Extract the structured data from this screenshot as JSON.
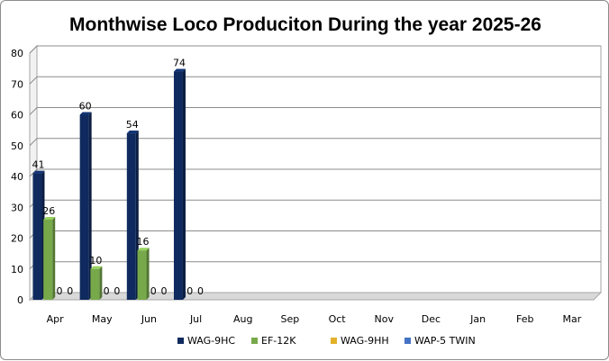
{
  "chart_data": {
    "type": "bar",
    "title": "Monthwise Loco Produciton During the year 2025-26",
    "xlabel": "",
    "ylabel": "",
    "categories": [
      "Apr",
      "May",
      "Jun",
      "Jul",
      "Aug",
      "Sep",
      "Oct",
      "Nov",
      "Dec",
      "Jan",
      "Feb",
      "Mar"
    ],
    "series": [
      {
        "name": "WAG-9HC",
        "color": "#0f2a5e",
        "values": [
          41,
          60,
          54,
          74,
          null,
          null,
          null,
          null,
          null,
          null,
          null,
          null
        ],
        "labels": [
          "41",
          "60",
          "54",
          "74",
          "",
          "",
          "",
          "",
          "",
          "",
          "",
          ""
        ]
      },
      {
        "name": "EF-12K",
        "color": "#77a94a",
        "values": [
          26,
          10,
          16,
          0,
          null,
          null,
          null,
          null,
          null,
          null,
          null,
          null
        ],
        "labels": [
          "26",
          "10",
          "16",
          "0",
          "",
          "",
          "",
          "",
          "",
          "",
          "",
          ""
        ]
      },
      {
        "name": "WAG-9HH",
        "color": "#e3b12a",
        "values": [
          0,
          0,
          0,
          0,
          null,
          null,
          null,
          null,
          null,
          null,
          null,
          null
        ],
        "labels": [
          "0",
          "0",
          "0",
          "0",
          "",
          "",
          "",
          "",
          "",
          "",
          "",
          ""
        ]
      },
      {
        "name": "WAP-5 TWIN",
        "color": "#4472c4",
        "values": [
          0,
          0,
          0,
          null,
          null,
          null,
          null,
          null,
          null,
          null,
          null,
          null
        ],
        "labels": [
          "0",
          "0",
          "0",
          "",
          "",
          "",
          "",
          "",
          "",
          "",
          "",
          ""
        ]
      }
    ],
    "ylim": [
      0,
      80
    ],
    "yticks": [
      0,
      10,
      20,
      30,
      40,
      50,
      60,
      70,
      80
    ],
    "grid": true,
    "legend_position": "bottom"
  }
}
